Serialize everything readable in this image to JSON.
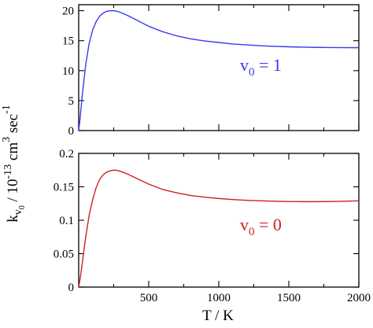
{
  "figure": {
    "ylabel": {
      "main": "k",
      "sub": "v",
      "subsub": "0",
      "divider": " / 10",
      "exp1": "-13",
      "unit1": " cm",
      "exp2": "3",
      "unit2": " sec",
      "exp3": "-1"
    },
    "xlabel": "T / K"
  },
  "chart_data": [
    {
      "type": "line",
      "xlim": [
        0,
        2000
      ],
      "ylim": [
        0,
        21
      ],
      "yticks": [
        0,
        5,
        10,
        15,
        20
      ],
      "xticks": [
        500,
        1000,
        1500,
        2000
      ],
      "show_xtick_labels": false,
      "grid": false,
      "annotation": {
        "base": "v",
        "sub": "0",
        "rest": " = 1",
        "color": "#3a3af0"
      },
      "series": [
        {
          "color": "#3a3af0",
          "x": [
            0,
            10,
            25,
            50,
            75,
            100,
            125,
            150,
            175,
            200,
            225,
            250,
            275,
            300,
            350,
            400,
            450,
            500,
            600,
            700,
            800,
            900,
            1000,
            1100,
            1200,
            1300,
            1400,
            1500,
            1600,
            1700,
            1800,
            1900,
            2000
          ],
          "y": [
            0,
            2.0,
            5.8,
            11.0,
            14.6,
            16.8,
            18.2,
            19.1,
            19.6,
            19.9,
            20.0,
            20.0,
            19.9,
            19.7,
            19.2,
            18.6,
            18.0,
            17.4,
            16.5,
            15.8,
            15.3,
            14.95,
            14.7,
            14.45,
            14.3,
            14.15,
            14.05,
            13.98,
            13.92,
            13.88,
            13.86,
            13.84,
            13.83
          ]
        }
      ]
    },
    {
      "type": "line",
      "xlim": [
        0,
        2000
      ],
      "ylim": [
        0,
        0.2
      ],
      "yticks": [
        0,
        0.05,
        0.1,
        0.15,
        0.2
      ],
      "ytick_labels": [
        "0",
        "0.05",
        "0.1",
        "0.15",
        "0.2"
      ],
      "xticks": [
        500,
        1000,
        1500,
        2000
      ],
      "xtick_labels": [
        "500",
        "1000",
        "1500",
        "2000"
      ],
      "show_xtick_labels": true,
      "grid": false,
      "annotation": {
        "base": "v",
        "sub": "0",
        "rest": " = 0",
        "color": "#cc2222"
      },
      "series": [
        {
          "color": "#cc2222",
          "x": [
            0,
            10,
            25,
            50,
            75,
            100,
            125,
            150,
            175,
            200,
            225,
            250,
            275,
            300,
            350,
            400,
            450,
            500,
            600,
            700,
            800,
            900,
            1000,
            1100,
            1200,
            1300,
            1400,
            1500,
            1600,
            1700,
            1800,
            1900,
            2000
          ],
          "y": [
            0,
            0.012,
            0.035,
            0.075,
            0.108,
            0.131,
            0.149,
            0.161,
            0.168,
            0.172,
            0.174,
            0.175,
            0.1745,
            0.173,
            0.169,
            0.164,
            0.159,
            0.154,
            0.146,
            0.141,
            0.137,
            0.1345,
            0.1325,
            0.131,
            0.1298,
            0.129,
            0.1285,
            0.128,
            0.1278,
            0.1278,
            0.128,
            0.1285,
            0.129
          ]
        }
      ]
    }
  ]
}
